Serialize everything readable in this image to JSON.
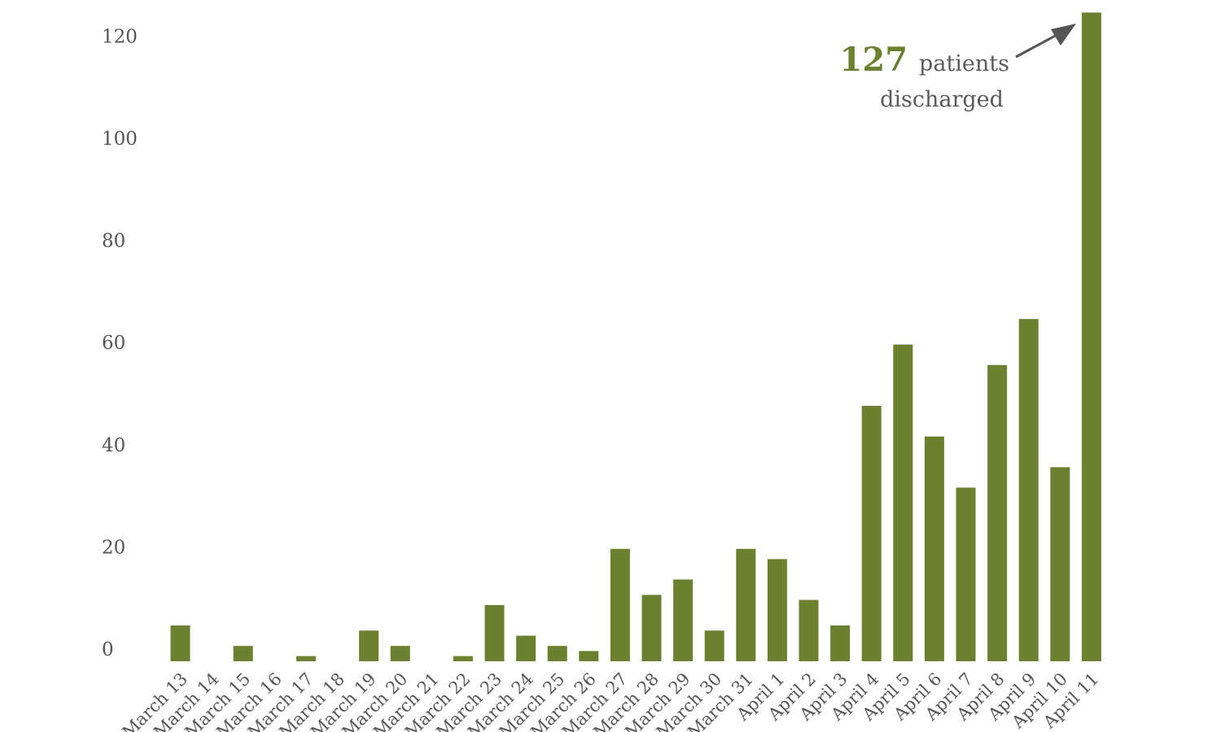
{
  "chart_data": {
    "type": "bar",
    "categories": [
      "March 13",
      "March 14",
      "March 15",
      "March 16",
      "March 17",
      "March 18",
      "March 19",
      "March 20",
      "March 21",
      "March 22",
      "March 23",
      "March 24",
      "March 25",
      "March 26",
      "March 27",
      "March 28",
      "March 29",
      "March 30",
      "March 31",
      "April 1",
      "April 2",
      "April 3",
      "April 4",
      "April 5",
      "April 6",
      "April 7",
      "April 8",
      "April 9",
      "April 10",
      "April 11"
    ],
    "values": [
      7,
      0,
      3,
      0,
      1,
      0,
      6,
      3,
      0,
      1,
      11,
      5,
      3,
      2,
      22,
      13,
      16,
      6,
      22,
      20,
      12,
      7,
      50,
      62,
      44,
      34,
      58,
      67,
      38,
      127
    ],
    "ylim": [
      0,
      127
    ],
    "yticks": [
      0,
      20,
      40,
      60,
      80,
      100,
      120
    ],
    "grid": false,
    "color": "#6b812f",
    "annotation": {
      "number": "127",
      "line1": "patients",
      "line2": "discharged"
    }
  }
}
